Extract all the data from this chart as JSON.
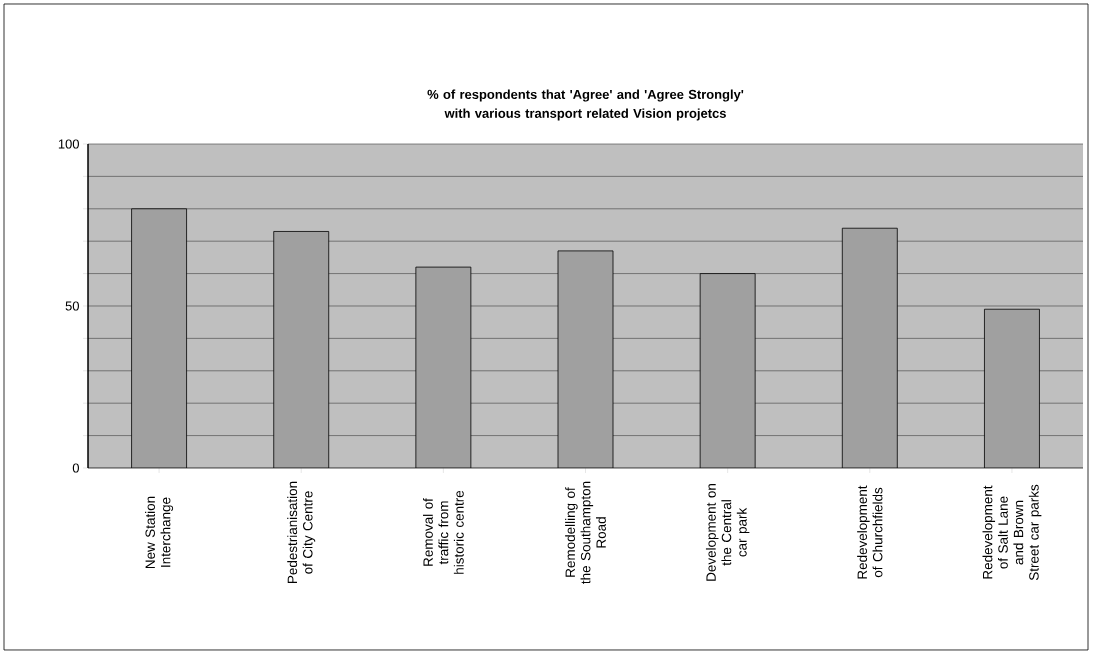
{
  "chart_data": {
    "type": "bar",
    "title": "% of respondents that 'Agree' and 'Agree Strongly' with various transport related Vision projetcs",
    "categories": [
      "New Station Interchange",
      "Pedestrianisation of City Centre",
      "Removal of traffic from historic centre",
      "Remodelling of the Southampton Road",
      "Development on the Central car park",
      "Redevelopment of Churchfields",
      "Redevelopment of Salt Lane and Brown Street car parks"
    ],
    "values": [
      80,
      73,
      62,
      67,
      60,
      74,
      49
    ],
    "color": "#a0a0a0",
    "ylim": [
      0,
      100
    ],
    "yticks": [
      0,
      {
        "value": 10,
        "label": null
      },
      {
        "value": 20,
        "label": null
      },
      {
        "value": 30,
        "label": null
      },
      {
        "value": 40,
        "label": null
      },
      50,
      {
        "value": 60,
        "label": null
      },
      {
        "value": 70,
        "label": null
      },
      {
        "value": 80,
        "label": null
      },
      {
        "value": 90,
        "label": null
      },
      100
    ],
    "grid": "y"
  }
}
